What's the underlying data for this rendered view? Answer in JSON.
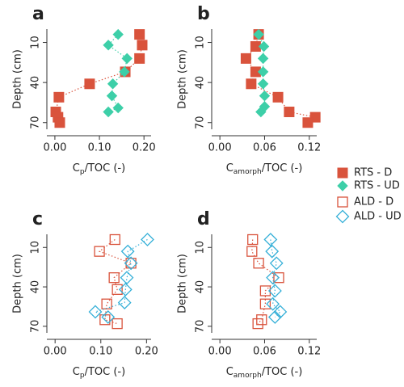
{
  "chart_data": [
    {
      "type": "scatter",
      "label": "a",
      "y_label": "Depth (cm)",
      "x_label": {
        "main": "C",
        "sub": "p",
        "rest": "/TOC (-)"
      },
      "xlim": [
        -0.018,
        0.216
      ],
      "ylim": [
        75,
        0
      ],
      "xticks": [
        {
          "value": 0,
          "label": "0.00"
        },
        {
          "value": 0.1,
          "label": "0.10"
        },
        {
          "value": 0.2,
          "label": "0.20"
        }
      ],
      "yticks": [
        10,
        40,
        70
      ],
      "series": [
        {
          "name": "RTS - D",
          "color": "#d9533c",
          "marker": "square",
          "filled": true,
          "x": [
            0.19,
            0.196,
            0.19,
            0.158,
            0.078,
            0.009,
            0.002,
            0.007,
            0.011
          ],
          "y": [
            4,
            12,
            22,
            32,
            41,
            51,
            62,
            66,
            70
          ]
        },
        {
          "name": "RTS - UD",
          "color": "#3dcfa8",
          "marker": "diamond",
          "filled": true,
          "x": [
            0.142,
            0.12,
            0.162,
            0.156,
            0.13,
            0.128,
            0.142,
            0.12
          ],
          "y": [
            4,
            12,
            22,
            32,
            41,
            50,
            59,
            62
          ]
        }
      ]
    },
    {
      "type": "scatter",
      "label": "b",
      "y_label": "Depth (cm)",
      "x_label": {
        "main": "C",
        "sub": "amorph",
        "rest": "/TOC (-)"
      },
      "xlim": [
        -0.011,
        0.13
      ],
      "ylim": [
        75,
        0
      ],
      "xticks": [
        {
          "value": 0,
          "label": "0.00"
        },
        {
          "value": 0.06,
          "label": "0.06"
        },
        {
          "value": 0.12,
          "label": "0.12"
        }
      ],
      "yticks": [
        10,
        40,
        70
      ],
      "series": [
        {
          "name": "RTS - D",
          "color": "#d9533c",
          "marker": "square",
          "filled": true,
          "x": [
            0.052,
            0.048,
            0.035,
            0.048,
            0.042,
            0.078,
            0.093,
            0.128,
            0.118
          ],
          "y": [
            4,
            13,
            22,
            32,
            41,
            51,
            62,
            66,
            70
          ]
        },
        {
          "name": "RTS - UD",
          "color": "#3dcfa8",
          "marker": "diamond",
          "filled": true,
          "x": [
            0.052,
            0.059,
            0.058,
            0.058,
            0.058,
            0.06,
            0.06,
            0.055
          ],
          "y": [
            4,
            13,
            22,
            32,
            41,
            50,
            58,
            62
          ]
        }
      ]
    },
    {
      "type": "scatter",
      "label": "c",
      "y_label": "Depth (cm)",
      "x_label": {
        "main": "C",
        "sub": "p",
        "rest": "/TOC (-)"
      },
      "xlim": [
        -0.018,
        0.21
      ],
      "ylim": [
        75,
        0
      ],
      "xticks": [
        {
          "value": 0,
          "label": "0.00"
        },
        {
          "value": 0.1,
          "label": "0.10"
        },
        {
          "value": 0.2,
          "label": "0.20"
        }
      ],
      "yticks": [
        10,
        40,
        70
      ],
      "series": [
        {
          "name": "ALD - D",
          "color": "#d9533c",
          "marker": "square",
          "filled": false,
          "x": [
            0.131,
            0.097,
            0.166,
            0.129,
            0.136,
            0.113,
            0.109,
            0.136
          ],
          "y": [
            4,
            13,
            22,
            33,
            42,
            53,
            65,
            68
          ]
        },
        {
          "name": "ALD - UD",
          "color": "#36b0d8",
          "marker": "diamond",
          "filled": false,
          "x": [
            0.202,
            0.159,
            0.166,
            0.157,
            0.154,
            0.152,
            0.088,
            0.116
          ],
          "y": [
            4,
            13,
            22,
            33,
            42,
            52,
            59,
            63
          ]
        }
      ]
    },
    {
      "type": "scatter",
      "label": "d",
      "y_label": "Depth (cm)",
      "x_label": {
        "main": "C",
        "sub": "amorph",
        "rest": "/TOC (-)"
      },
      "xlim": [
        -0.011,
        0.13
      ],
      "ylim": [
        75,
        0
      ],
      "xticks": [
        {
          "value": 0,
          "label": "0.00"
        },
        {
          "value": 0.06,
          "label": "0.06"
        },
        {
          "value": 0.12,
          "label": "0.12"
        }
      ],
      "yticks": [
        10,
        40,
        70
      ],
      "series": [
        {
          "name": "ALD - D",
          "color": "#d9533c",
          "marker": "square",
          "filled": false,
          "x": [
            0.044,
            0.043,
            0.052,
            0.079,
            0.061,
            0.061,
            0.056,
            0.051
          ],
          "y": [
            4,
            13,
            22,
            33,
            43,
            53,
            65,
            68
          ]
        },
        {
          "name": "ALD - UD",
          "color": "#36b0d8",
          "marker": "diamond",
          "filled": false,
          "x": [
            0.068,
            0.07,
            0.076,
            0.071,
            0.074,
            0.071,
            0.081,
            0.074
          ],
          "y": [
            4,
            13,
            22,
            33,
            43,
            53,
            59,
            63
          ]
        }
      ]
    }
  ]
}
